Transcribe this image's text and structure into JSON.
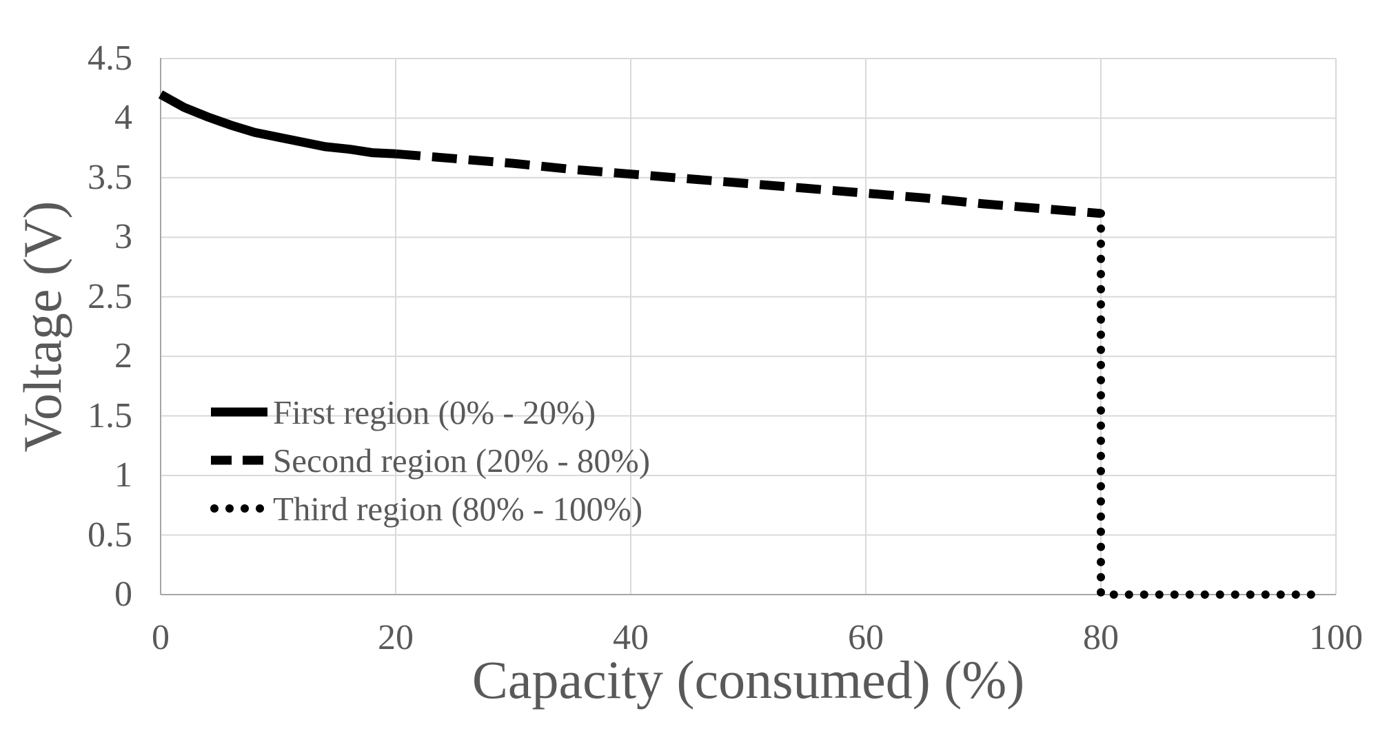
{
  "chart_data": {
    "type": "line",
    "title": "",
    "xlabel": "Capacity (consumed) (%)",
    "ylabel": "Voltage (V)",
    "xlim": [
      0,
      100
    ],
    "ylim": [
      0,
      4.5
    ],
    "grid": true,
    "legend_position": "inside-left",
    "xticks": {
      "values": [
        0,
        20,
        40,
        60,
        80,
        100
      ],
      "labels": [
        "0",
        "20",
        "40",
        "60",
        "80",
        "100"
      ]
    },
    "yticks": {
      "values": [
        0,
        0.5,
        1,
        1.5,
        2,
        2.5,
        3,
        3.5,
        4,
        4.5
      ],
      "labels": [
        "0",
        "0.5",
        "1",
        "1.5",
        "2",
        "2.5",
        "3",
        "3.5",
        "4",
        "4.5"
      ]
    },
    "series": [
      {
        "name": "First region (0% - 20%)",
        "style": "solid",
        "points": [
          [
            0,
            4.2
          ],
          [
            2,
            4.09
          ],
          [
            4,
            4.01
          ],
          [
            6,
            3.94
          ],
          [
            8,
            3.88
          ],
          [
            10,
            3.84
          ],
          [
            12,
            3.8
          ],
          [
            14,
            3.76
          ],
          [
            16,
            3.74
          ],
          [
            18,
            3.71
          ],
          [
            20,
            3.7
          ]
        ]
      },
      {
        "name": "Second region (20% - 80%)",
        "style": "dashed",
        "points": [
          [
            20,
            3.7
          ],
          [
            25,
            3.66
          ],
          [
            30,
            3.62
          ],
          [
            35,
            3.57
          ],
          [
            40,
            3.53
          ],
          [
            45,
            3.49
          ],
          [
            50,
            3.45
          ],
          [
            55,
            3.41
          ],
          [
            60,
            3.37
          ],
          [
            65,
            3.33
          ],
          [
            70,
            3.28
          ],
          [
            75,
            3.24
          ],
          [
            80,
            3.2
          ]
        ]
      },
      {
        "name": "Third region (80% - 100%)",
        "style": "dotted",
        "points": [
          [
            80,
            3.2
          ],
          [
            80,
            0
          ],
          [
            99,
            0
          ]
        ]
      }
    ],
    "colors": {
      "series": "#000000",
      "grid": "#d9d9d9",
      "axis": "#a6a6a6",
      "text": "#595959"
    }
  }
}
